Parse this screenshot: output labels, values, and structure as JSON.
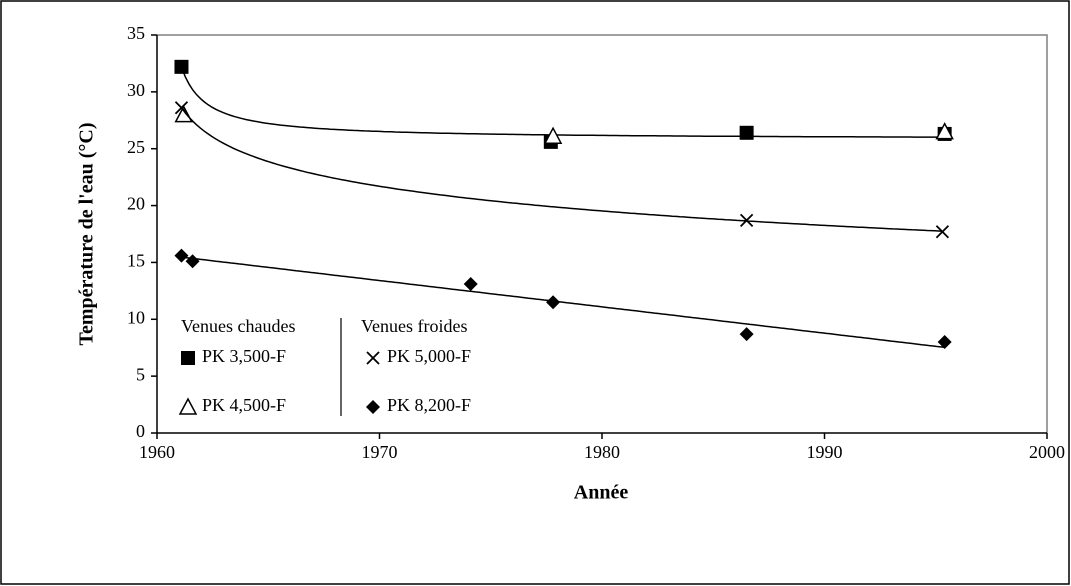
{
  "chart_data": {
    "type": "scatter",
    "xlabel": "Année",
    "ylabel": "Température de l'eau (°C)",
    "xlim": [
      1960,
      2000
    ],
    "xticks": [
      1960,
      1970,
      1980,
      1990,
      2000
    ],
    "ylim": [
      0,
      35
    ],
    "yticks": [
      0,
      5,
      10,
      15,
      20,
      25,
      30,
      35
    ],
    "legend_groups": [
      "Venues chaudes",
      "Venues froides"
    ],
    "series": [
      {
        "name": "PK 3,500-F",
        "marker": "square",
        "color": "#000000",
        "trendline": "reciprocal",
        "x": [
          1961.1,
          1977.7,
          1986.5,
          1995.4
        ],
        "values": [
          32.2,
          25.6,
          26.4,
          26.3
        ]
      },
      {
        "name": "PK 4,500-F",
        "marker": "triangle",
        "color": "#000000",
        "x": [
          1961.2,
          1977.8,
          1995.4
        ],
        "values": [
          28.0,
          26.1,
          26.5
        ]
      },
      {
        "name": "PK 5,000-F",
        "marker": "cross",
        "color": "#000000",
        "trendline": "logarithmic",
        "x": [
          1961.1,
          1986.5,
          1995.3
        ],
        "values": [
          28.6,
          18.7,
          17.7
        ]
      },
      {
        "name": "PK 8,200-F",
        "marker": "diamond",
        "color": "#000000",
        "trendline": "linear",
        "x": [
          1961.1,
          1961.6,
          1974.1,
          1977.8,
          1986.5,
          1995.4
        ],
        "values": [
          15.6,
          15.1,
          13.1,
          11.5,
          8.7,
          8.0
        ]
      }
    ]
  }
}
